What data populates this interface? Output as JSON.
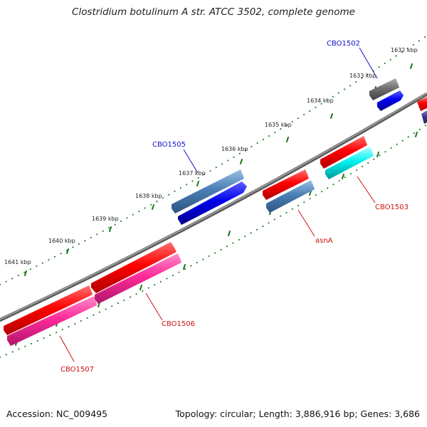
{
  "title": "Clostridium botulinum A str. ATCC 3502, complete genome",
  "footer": {
    "accession": "Accession: NC_009495",
    "summary": "Topology: circular; Length: 3,886,916 bp; Genes: 3,686"
  },
  "ticks": [
    "1632 kbp",
    "1633 kbp",
    "1634 kbp",
    "1635 kbp",
    "1636 kbp",
    "1637 kbp",
    "1638 kbp",
    "1639 kbp",
    "1640 kbp",
    "1641 kbp"
  ],
  "gene_labels": [
    {
      "text": "CBO1502",
      "color": "#1010cc"
    },
    {
      "text": "CBO1503",
      "color": "#cc1010"
    },
    {
      "text": "asnA",
      "color": "#cc1010"
    },
    {
      "text": "CBO1505",
      "color": "#1010cc"
    },
    {
      "text": "CBO1506",
      "color": "#cc1010"
    },
    {
      "text": "CBO1507",
      "color": "#cc1010"
    }
  ],
  "colors": {
    "backbone": "#7a7a7a",
    "ticks": "#1a7a1a",
    "red_feature": "#ff0000",
    "pink_feature": "#ff2a9a",
    "blue_feature": "#0000ee",
    "steelblue_feature": "#4a7fb5",
    "cyan_feature": "#00f0f0",
    "gray_feature": "#707070"
  }
}
